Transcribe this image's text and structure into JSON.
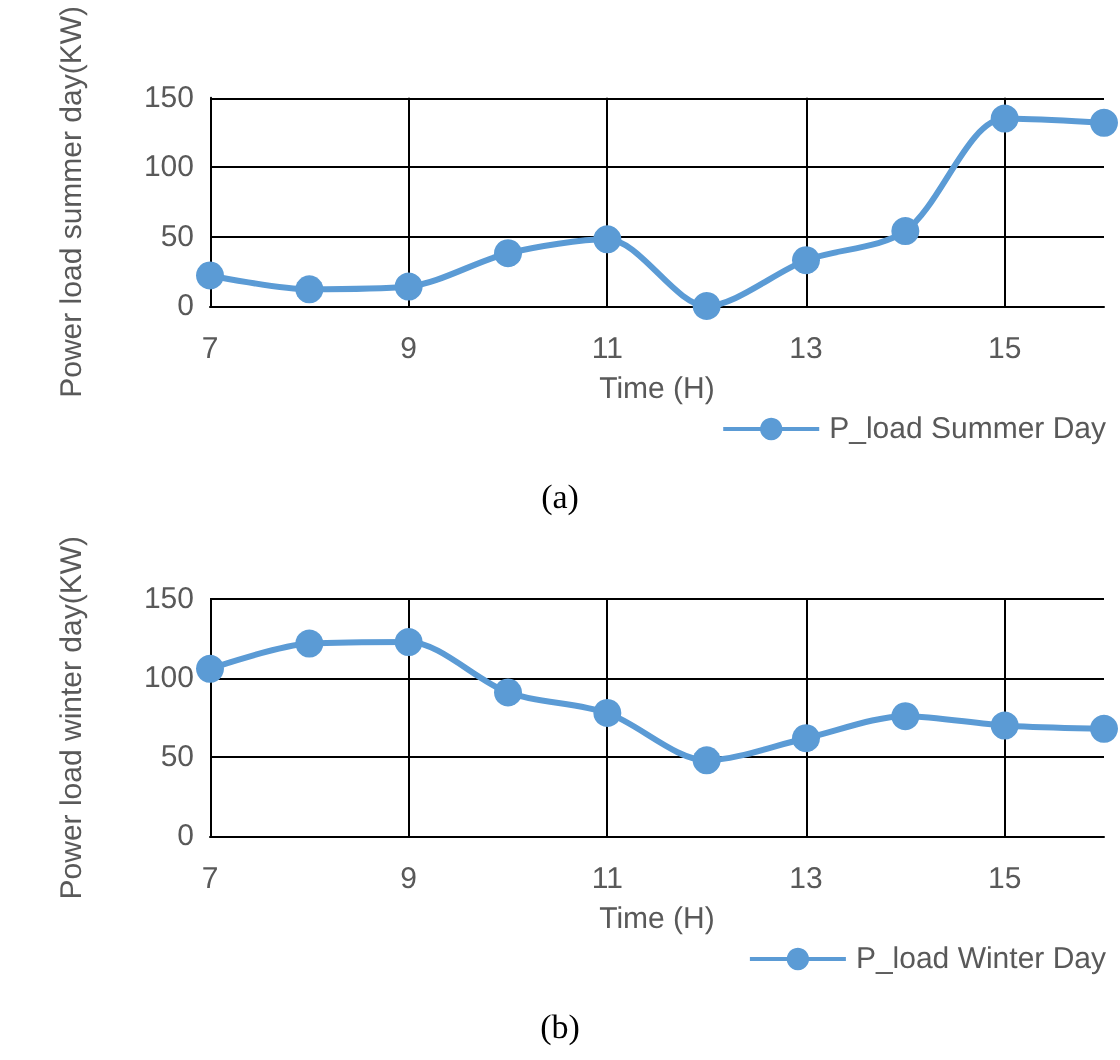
{
  "chart_data": [
    {
      "type": "line",
      "x": [
        7,
        8,
        9,
        10,
        11,
        12,
        13,
        14,
        15,
        16
      ],
      "xlabel": "Time (H)",
      "ylabel": "Power load summer day(KW)",
      "xlim": [
        7,
        16
      ],
      "xticks": [
        7,
        9,
        11,
        13,
        15
      ],
      "ylim": [
        0,
        150
      ],
      "yticks": [
        0,
        50,
        100,
        150
      ],
      "grid": true,
      "legend": "bottom right",
      "marker": "circle",
      "line_style": "solid",
      "annotations": [
        "(a)"
      ],
      "series": [
        {
          "name": "P_load Summer Day",
          "color": "#5b9bd5",
          "values": [
            22,
            12,
            14,
            38,
            48,
            0,
            33,
            54,
            135,
            132
          ]
        }
      ]
    },
    {
      "type": "line",
      "x": [
        7,
        8,
        9,
        10,
        11,
        12,
        13,
        14,
        15,
        16
      ],
      "xlabel": "Time (H)",
      "ylabel": "Power load winter day(KW)",
      "xlim": [
        7,
        16
      ],
      "xticks": [
        7,
        9,
        11,
        13,
        15
      ],
      "ylim": [
        0,
        150
      ],
      "yticks": [
        0,
        50,
        100,
        150
      ],
      "grid": true,
      "legend": "bottom right",
      "marker": "circle",
      "line_style": "solid",
      "annotations": [
        "(b)"
      ],
      "series": [
        {
          "name": "P_load Winter Day",
          "color": "#5b9bd5",
          "values": [
            106,
            122,
            123,
            91,
            78,
            48,
            62,
            76,
            70,
            68
          ]
        }
      ]
    }
  ]
}
